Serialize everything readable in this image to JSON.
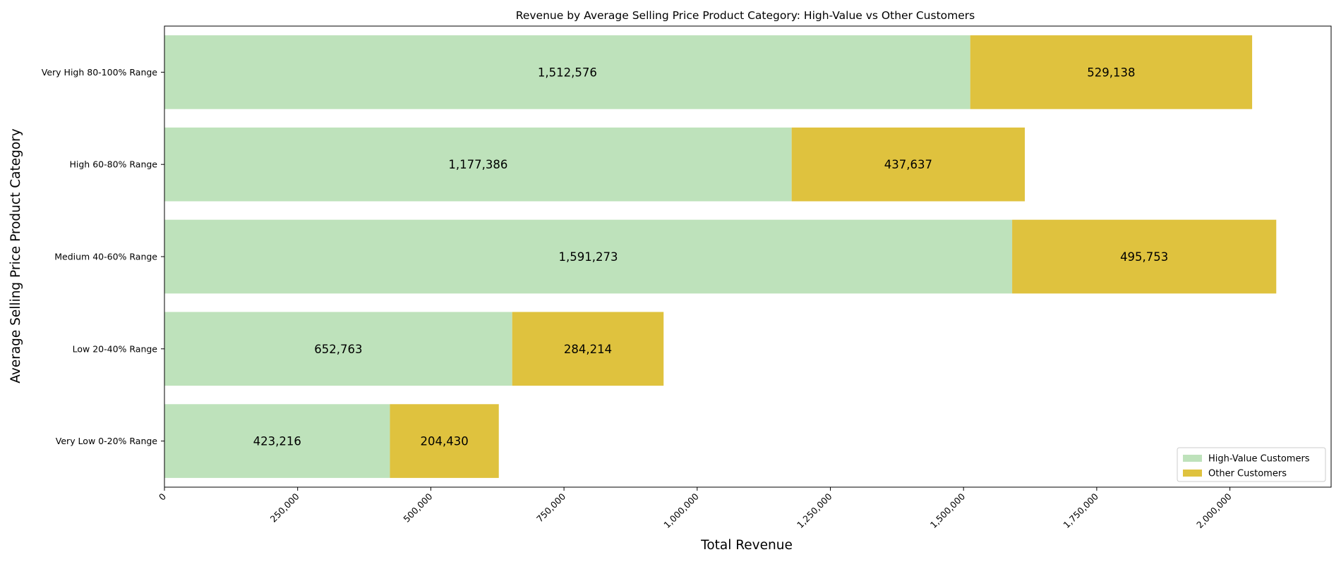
{
  "chart_data": {
    "type": "bar",
    "orientation": "horizontal",
    "stacked": true,
    "title": "Revenue by Average Selling Price Product Category: High-Value vs Other Customers",
    "xlabel": "Total Revenue",
    "ylabel": "Average Selling Price Product Category",
    "categories": [
      "Very High 80-100% Range",
      "High 60-80% Range",
      "Medium 40-60% Range",
      "Low 20-40% Range",
      "Very Low 0-20% Range"
    ],
    "series": [
      {
        "name": "High-Value Customers",
        "color": "#bee2bb",
        "values": [
          1512576,
          1177386,
          1591273,
          652763,
          423216
        ],
        "value_labels": [
          "1,512,576",
          "1,177,386",
          "1,591,273",
          "652,763",
          "423,216"
        ]
      },
      {
        "name": "Other Customers",
        "color": "#dfc23e",
        "values": [
          529138,
          437637,
          495753,
          284214,
          204430
        ],
        "value_labels": [
          "529,138",
          "437,637",
          "495,753",
          "284,214",
          "204,430"
        ]
      }
    ],
    "xlim": [
      0,
      2190000
    ],
    "xticks": [
      0,
      250000,
      500000,
      750000,
      1000000,
      1250000,
      1500000,
      1750000,
      2000000
    ],
    "xtick_labels": [
      "0",
      "250,000",
      "500,000",
      "750,000",
      "1,000,000",
      "1,250,000",
      "1,500,000",
      "1,750,000",
      "2,000,000"
    ],
    "grid": false,
    "legend_position": "bottom-right"
  }
}
